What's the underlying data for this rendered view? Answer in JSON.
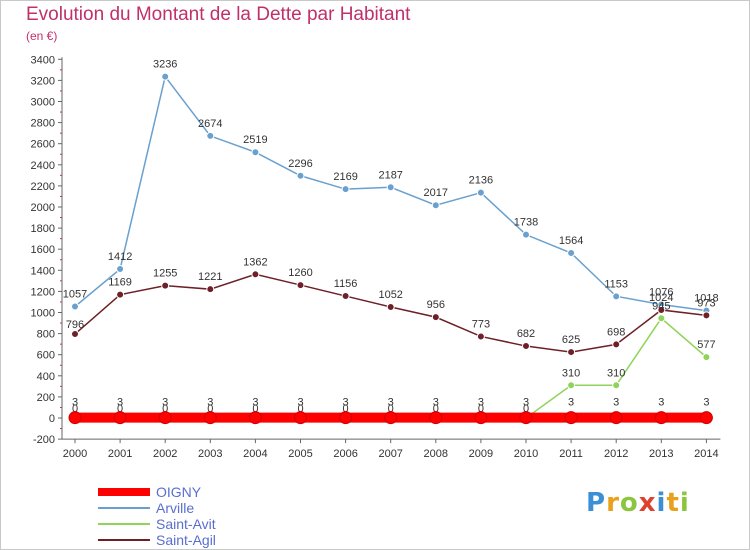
{
  "header": {
    "title": "Evolution du Montant de la Dette par Habitant",
    "subtitle": "(en €)"
  },
  "logo": {
    "letters": [
      "P",
      "r",
      "o",
      "x",
      "i",
      "t",
      "i"
    ],
    "colors": [
      "#3b8fd6",
      "#e8a11c",
      "#8cc63f",
      "#e0402f",
      "#3b8fd6",
      "#e8a11c",
      "#8cc63f"
    ]
  },
  "chart_data": {
    "type": "line",
    "title": "Evolution du Montant de la Dette par Habitant",
    "subtitle": "(en €)",
    "x": [
      "2000",
      "2001",
      "2002",
      "2003",
      "2004",
      "2005",
      "2006",
      "2007",
      "2008",
      "2009",
      "2010",
      "2011",
      "2012",
      "2013",
      "2014"
    ],
    "yticks": [
      "-200",
      "0",
      "200",
      "400",
      "600",
      "800",
      "1000",
      "1200",
      "1400",
      "1600",
      "1800",
      "2000",
      "2200",
      "2400",
      "2600",
      "2800",
      "3000",
      "3200",
      "3400"
    ],
    "ylim": [
      -200,
      3400
    ],
    "grid": false,
    "legend_position": "bottom-left",
    "series": [
      {
        "name": "Arville",
        "color": "#6aa0cf",
        "values": [
          1057,
          1412,
          3236,
          2674,
          2519,
          2296,
          2169,
          2187,
          2017,
          2136,
          1738,
          1564,
          1153,
          1076,
          1018
        ],
        "labels": [
          "1057",
          "1412",
          "3236",
          "2674",
          "2519",
          "2296",
          "2169",
          "2187",
          "2017",
          "2136",
          "1738",
          "1564",
          "1153",
          "1076",
          "1018"
        ]
      },
      {
        "name": "Saint-Agil",
        "color": "#6d2028",
        "values": [
          796,
          1169,
          1255,
          1221,
          1362,
          1260,
          1156,
          1052,
          956,
          773,
          682,
          625,
          698,
          1024,
          973
        ],
        "labels": [
          "796",
          "1169",
          "1255",
          "1221",
          "1362",
          "1260",
          "1156",
          "1052",
          "956",
          "773",
          "682",
          "625",
          "698",
          "1024",
          "973"
        ]
      },
      {
        "name": "Saint-Avit",
        "color": "#8fd45a",
        "values": [
          0,
          0,
          0,
          0,
          0,
          0,
          0,
          0,
          0,
          0,
          0,
          310,
          310,
          945,
          577
        ],
        "labels": [
          "0",
          "0",
          "0",
          "0",
          "0",
          "0",
          "0",
          "0",
          "0",
          "0",
          "0",
          "310",
          "310",
          "945",
          "577"
        ]
      },
      {
        "name": "OIGNY",
        "color": "#ff0000",
        "values": [
          3,
          3,
          3,
          3,
          3,
          3,
          3,
          3,
          3,
          3,
          3,
          3,
          3,
          3,
          3
        ],
        "labels": [
          "3",
          "3",
          "3",
          "3",
          "3",
          "3",
          "3",
          "3",
          "3",
          "3",
          "3",
          "3",
          "3",
          "3",
          "3"
        ]
      }
    ],
    "legend": [
      "OIGNY",
      "Arville",
      "Saint-Avit",
      "Saint-Agil"
    ]
  }
}
